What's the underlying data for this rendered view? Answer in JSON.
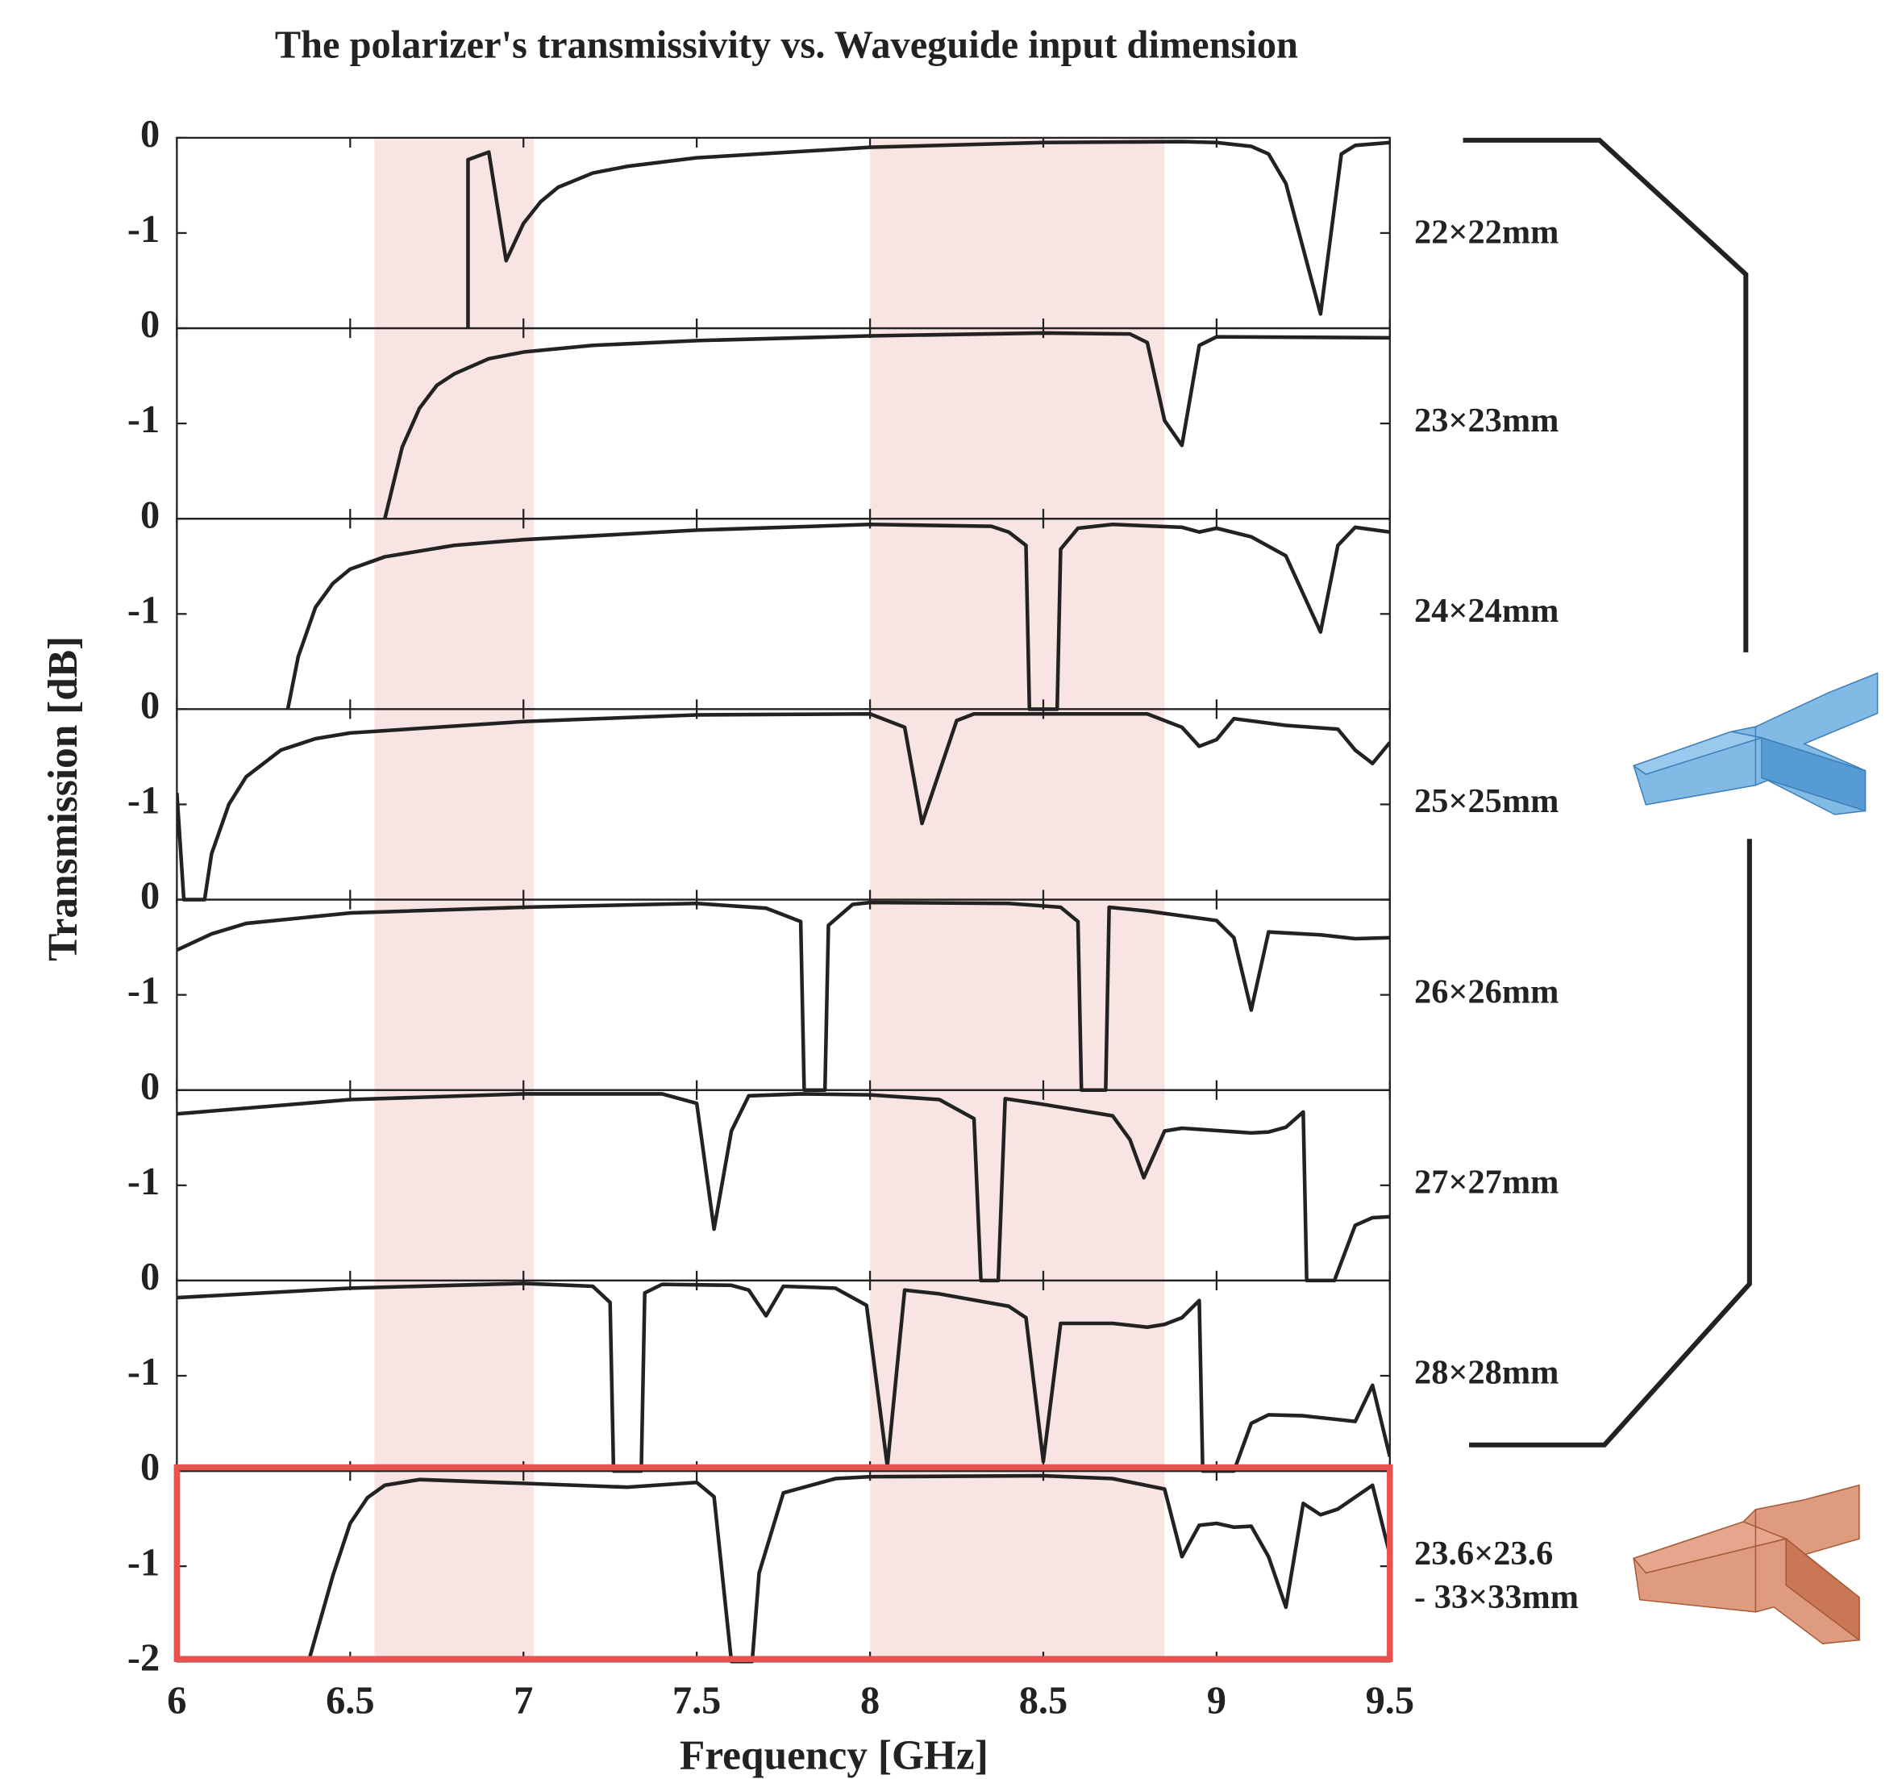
{
  "chart_data": {
    "type": "line",
    "title": "The polarizer's transmissivity vs. Waveguide input dimension",
    "xlabel": "Frequency [GHz]",
    "ylabel": "Transmission [dB]",
    "xlim": [
      6,
      9.5
    ],
    "xticks": [
      6,
      6.5,
      7,
      7.5,
      8,
      8.5,
      9,
      9.5
    ],
    "shaded_regions": [
      [
        6.57,
        7.03
      ],
      [
        8,
        8.85
      ]
    ],
    "shade_color": "#f7e4e3",
    "line_color": "#222222",
    "highlight_color": "#e8534f",
    "panels": [
      {
        "label": "22×22mm",
        "ylim": [
          -2,
          0
        ],
        "yticks": [
          -1,
          0
        ],
        "x": [
          6.84,
          6.84,
          6.9,
          6.95,
          7.0,
          7.05,
          7.1,
          7.2,
          7.3,
          7.5,
          8.0,
          8.5,
          8.9,
          9.0,
          9.1,
          9.15,
          9.2,
          9.3,
          9.36,
          9.4,
          9.5
        ],
        "values": [
          -2,
          -0.23,
          -0.15,
          -1.29,
          -0.9,
          -0.67,
          -0.52,
          -0.37,
          -0.3,
          -0.21,
          -0.1,
          -0.05,
          -0.04,
          -0.05,
          -0.09,
          -0.17,
          -0.48,
          -1.85,
          -0.17,
          -0.08,
          -0.05
        ]
      },
      {
        "label": "23×23mm",
        "ylim": [
          -2,
          0
        ],
        "yticks": [
          -1,
          0
        ],
        "x": [
          6.6,
          6.65,
          6.7,
          6.75,
          6.8,
          6.9,
          7.0,
          7.2,
          7.5,
          8.0,
          8.5,
          8.75,
          8.8,
          8.85,
          8.9,
          8.95,
          9.0,
          9.5
        ],
        "values": [
          -2,
          -1.25,
          -0.84,
          -0.6,
          -0.48,
          -0.32,
          -0.25,
          -0.18,
          -0.13,
          -0.08,
          -0.05,
          -0.06,
          -0.15,
          -0.97,
          -1.23,
          -0.18,
          -0.09,
          -0.1
        ]
      },
      {
        "label": "24×24mm",
        "ylim": [
          -2,
          0
        ],
        "yticks": [
          -1,
          0
        ],
        "x": [
          6.32,
          6.35,
          6.4,
          6.45,
          6.5,
          6.6,
          6.8,
          7.0,
          7.5,
          8.0,
          8.35,
          8.4,
          8.45,
          8.46,
          8.54,
          8.55,
          8.6,
          8.7,
          8.9,
          8.95,
          9.0,
          9.1,
          9.2,
          9.3,
          9.35,
          9.4,
          9.5
        ],
        "values": [
          -2,
          -1.45,
          -0.93,
          -0.68,
          -0.53,
          -0.4,
          -0.28,
          -0.22,
          -0.12,
          -0.06,
          -0.08,
          -0.14,
          -0.28,
          -2,
          -2,
          -0.32,
          -0.1,
          -0.06,
          -0.09,
          -0.14,
          -0.1,
          -0.19,
          -0.39,
          -1.19,
          -0.28,
          -0.09,
          -0.14
        ]
      },
      {
        "label": "25×25mm",
        "ylim": [
          -2,
          0
        ],
        "yticks": [
          -1,
          0
        ],
        "x": [
          6.0,
          6.02,
          6.08,
          6.1,
          6.15,
          6.2,
          6.3,
          6.4,
          6.5,
          7.0,
          7.5,
          8.0,
          8.1,
          8.15,
          8.25,
          8.3,
          8.8,
          8.9,
          8.95,
          9.0,
          9.05,
          9.2,
          9.35,
          9.4,
          9.45,
          9.5
        ],
        "values": [
          -0.88,
          -2,
          -2,
          -1.52,
          -1.0,
          -0.71,
          -0.43,
          -0.31,
          -0.25,
          -0.13,
          -0.06,
          -0.05,
          -0.19,
          -1.2,
          -0.12,
          -0.05,
          -0.05,
          -0.19,
          -0.39,
          -0.32,
          -0.1,
          -0.17,
          -0.21,
          -0.43,
          -0.57,
          -0.35
        ]
      },
      {
        "label": "26×26mm",
        "ylim": [
          -2,
          0
        ],
        "yticks": [
          -1,
          0
        ],
        "x": [
          6.0,
          6.1,
          6.2,
          6.5,
          7.0,
          7.5,
          7.7,
          7.8,
          7.81,
          7.87,
          7.88,
          7.95,
          8.0,
          8.4,
          8.55,
          8.6,
          8.61,
          8.68,
          8.69,
          8.8,
          9.0,
          9.05,
          9.1,
          9.15,
          9.3,
          9.4,
          9.5
        ],
        "values": [
          -0.53,
          -0.36,
          -0.25,
          -0.14,
          -0.08,
          -0.04,
          -0.09,
          -0.23,
          -2,
          -2,
          -0.27,
          -0.05,
          -0.03,
          -0.04,
          -0.08,
          -0.23,
          -2,
          -2,
          -0.08,
          -0.12,
          -0.22,
          -0.4,
          -1.16,
          -0.34,
          -0.37,
          -0.41,
          -0.4
        ]
      },
      {
        "label": "27×27mm",
        "ylim": [
          -2,
          0
        ],
        "yticks": [
          -1,
          0
        ],
        "x": [
          6.0,
          6.5,
          7.0,
          7.4,
          7.5,
          7.55,
          7.6,
          7.65,
          7.8,
          8.0,
          8.2,
          8.3,
          8.32,
          8.37,
          8.39,
          8.5,
          8.7,
          8.75,
          8.79,
          8.85,
          8.9,
          9.1,
          9.15,
          9.2,
          9.25,
          9.26,
          9.34,
          9.4,
          9.45,
          9.5
        ],
        "values": [
          -0.25,
          -0.1,
          -0.04,
          -0.04,
          -0.14,
          -1.46,
          -0.43,
          -0.06,
          -0.04,
          -0.05,
          -0.1,
          -0.3,
          -2,
          -2,
          -0.09,
          -0.15,
          -0.27,
          -0.52,
          -0.92,
          -0.43,
          -0.4,
          -0.45,
          -0.44,
          -0.39,
          -0.23,
          -2,
          -2,
          -1.42,
          -1.34,
          -1.33
        ]
      },
      {
        "label": "28×28mm",
        "ylim": [
          -2,
          0
        ],
        "yticks": [
          -1,
          0
        ],
        "x": [
          6.0,
          6.5,
          7.0,
          7.2,
          7.25,
          7.26,
          7.34,
          7.35,
          7.4,
          7.6,
          7.65,
          7.7,
          7.75,
          7.9,
          7.99,
          8.05,
          8.1,
          8.2,
          8.4,
          8.45,
          8.5,
          8.55,
          8.7,
          8.8,
          8.85,
          8.9,
          8.95,
          8.96,
          9.05,
          9.1,
          9.15,
          9.25,
          9.4,
          9.45,
          9.5
        ],
        "values": [
          -0.18,
          -0.08,
          -0.03,
          -0.06,
          -0.23,
          -2,
          -2,
          -0.13,
          -0.04,
          -0.05,
          -0.1,
          -0.37,
          -0.06,
          -0.08,
          -0.26,
          -1.95,
          -0.1,
          -0.14,
          -0.27,
          -0.39,
          -1.9,
          -0.45,
          -0.45,
          -0.49,
          -0.46,
          -0.39,
          -0.21,
          -2,
          -2,
          -1.5,
          -1.41,
          -1.42,
          -1.48,
          -1.1,
          -1.85
        ]
      },
      {
        "label": [
          "23.6×23.6",
          "- 33×33mm"
        ],
        "ylim": [
          -2,
          0
        ],
        "yticks": [
          -2,
          -1,
          0
        ],
        "highlight": true,
        "x": [
          6.38,
          6.45,
          6.5,
          6.55,
          6.6,
          6.7,
          7.0,
          7.3,
          7.5,
          7.55,
          7.6,
          7.66,
          7.68,
          7.75,
          7.9,
          8.0,
          8.5,
          8.7,
          8.85,
          8.9,
          8.95,
          9.0,
          9.05,
          9.1,
          9.15,
          9.2,
          9.25,
          9.3,
          9.35,
          9.45,
          9.5
        ],
        "values": [
          -2,
          -1.1,
          -0.55,
          -0.28,
          -0.15,
          -0.09,
          -0.13,
          -0.17,
          -0.12,
          -0.27,
          -2,
          -2,
          -1.07,
          -0.23,
          -0.08,
          -0.06,
          -0.05,
          -0.08,
          -0.19,
          -0.9,
          -0.57,
          -0.55,
          -0.59,
          -0.58,
          -0.9,
          -1.43,
          -0.34,
          -0.46,
          -0.4,
          -0.15,
          -0.88
        ]
      }
    ]
  }
}
